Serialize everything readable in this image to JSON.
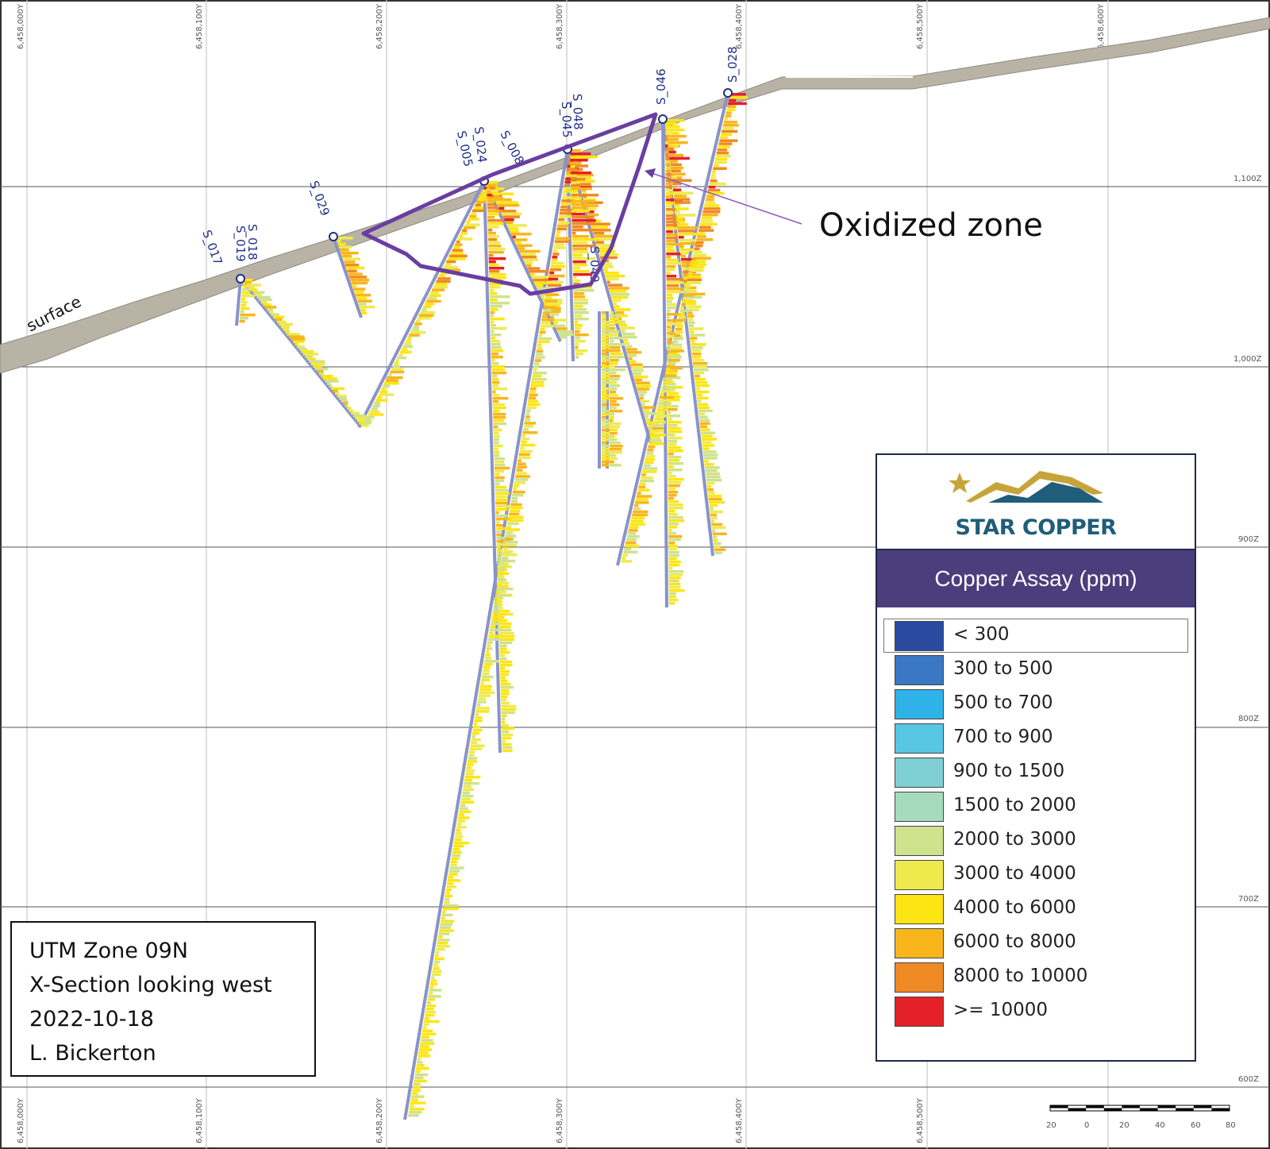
{
  "grid": {
    "northings": [
      "6,458,000Y",
      "6,458,100Y",
      "6,458,200Y",
      "6,458,300Y",
      "6,458,400Y",
      "6,458,500Y",
      "6,458,600Y"
    ],
    "elevations": [
      "1,100Z",
      "1,000Z",
      "900Z",
      "800Z",
      "700Z",
      "600Z"
    ]
  },
  "holes": [
    "S_017",
    "S_019",
    "S_018",
    "S_029",
    "S_005",
    "S_024",
    "S_008",
    "S_045",
    "S_048",
    "S_046",
    "S_028",
    "S_049"
  ],
  "labels": {
    "surface": "surface",
    "callout": "Oxidized zone"
  },
  "logo": {
    "name": "STAR COPPER",
    "colors": {
      "gold": "#c7a43a",
      "teal": "#1f5d7a"
    }
  },
  "legend": {
    "title": "Copper Assay (ppm)",
    "items": [
      {
        "label": "< 300",
        "color": "#2a4aa0"
      },
      {
        "label": "300 to 500",
        "color": "#3a78c4"
      },
      {
        "label": "500 to 700",
        "color": "#2fb2e8"
      },
      {
        "label": "700 to 900",
        "color": "#57c7e4"
      },
      {
        "label": "900 to 1500",
        "color": "#7ecfd6"
      },
      {
        "label": "1500 to 2000",
        "color": "#a6dbbc"
      },
      {
        "label": "2000 to 3000",
        "color": "#cfe28d"
      },
      {
        "label": "3000 to 4000",
        "color": "#eeea4e"
      },
      {
        "label": "4000 to 6000",
        "color": "#fde514"
      },
      {
        "label": "6000 to 8000",
        "color": "#f9b61c"
      },
      {
        "label": "8000 to 10000",
        "color": "#f08a24"
      },
      {
        "label": ">= 10000",
        "color": "#e42126"
      }
    ]
  },
  "info": {
    "zone": "UTM Zone 09N",
    "section": "X-Section looking west",
    "date": "2022-10-18",
    "author": "L. Bickerton"
  },
  "scale_bar": {
    "ticks": [
      "20",
      "0",
      "20",
      "40",
      "60",
      "80"
    ]
  },
  "colors": {
    "oxidized_outline": "#6a3ea1",
    "surface_fill": "#b9b3a5",
    "grid_line": "#c8c8c8"
  }
}
